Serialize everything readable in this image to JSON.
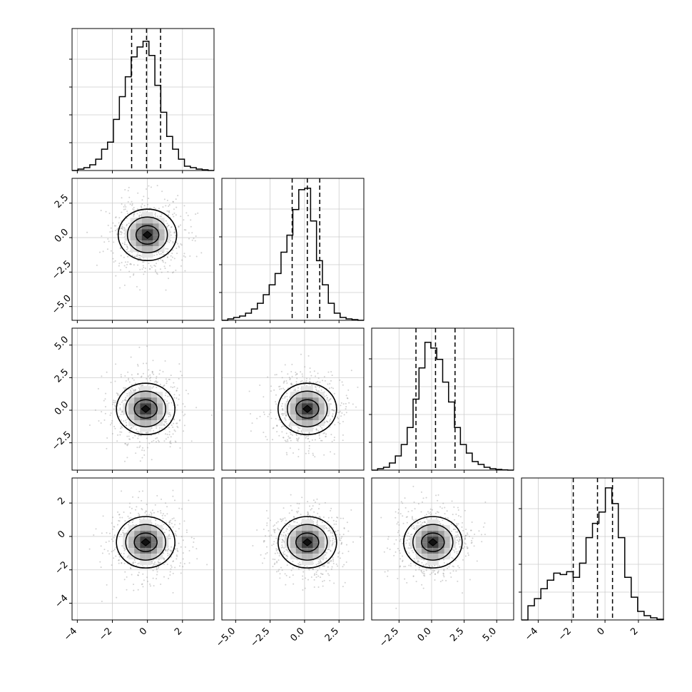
{
  "chart_data": {
    "type": "corner",
    "grid": true,
    "variables": [
      {
        "xlim": [
          -4.3,
          3.8
        ],
        "ticks": [
          -4,
          -2,
          0,
          2
        ],
        "tick_labels": [
          "−4",
          "−2",
          "0",
          "2"
        ],
        "quantiles": [
          -0.9,
          -0.05,
          0.75
        ]
      },
      {
        "xlim": [
          -6.0,
          4.3
        ],
        "ticks": [
          -5.0,
          -2.5,
          0.0,
          2.5
        ],
        "tick_labels": [
          "−5.0",
          "−2.5",
          "0.0",
          "2.5"
        ],
        "quantiles": [
          -0.9,
          0.2,
          1.1
        ]
      },
      {
        "xlim": [
          -4.6,
          6.3
        ],
        "ticks": [
          -2.5,
          0.0,
          2.5,
          5.0
        ],
        "tick_labels": [
          "−2.5",
          "0.0",
          "2.5",
          "5.0"
        ],
        "quantiles": [
          -1.2,
          0.3,
          1.8
        ]
      },
      {
        "xlim": [
          -5.0,
          3.5
        ],
        "ticks": [
          -4,
          -2,
          0,
          2
        ],
        "tick_labels": [
          "−4",
          "−2",
          "0",
          "2"
        ],
        "quantiles": [
          -1.9,
          -0.45,
          0.45
        ]
      }
    ],
    "row_ticks": [
      null,
      {
        "ticks": [
          2.5,
          0.0,
          -2.5,
          -5.0
        ],
        "tick_labels": [
          "2.5",
          "0.0",
          "−2.5",
          "−5.0"
        ]
      },
      {
        "ticks": [
          5.0,
          2.5,
          0.0,
          -2.5
        ],
        "tick_labels": [
          "5.0",
          "2.5",
          "0.0",
          "−2.5"
        ]
      },
      {
        "ticks": [
          2,
          0,
          -2,
          -4
        ],
        "tick_labels": [
          "2",
          "0",
          "−2",
          "−4"
        ]
      }
    ],
    "histograms": [
      {
        "bins": [
          -4.3,
          3.8
        ],
        "counts": [
          0,
          0.01,
          0.02,
          0.04,
          0.08,
          0.15,
          0.2,
          0.36,
          0.52,
          0.66,
          0.8,
          0.87,
          0.91,
          0.81,
          0.6,
          0.41,
          0.24,
          0.15,
          0.08,
          0.03,
          0.02,
          0.01,
          0.005,
          0
        ]
      },
      {
        "bins": [
          -6.0,
          4.3
        ],
        "counts": [
          0,
          0.01,
          0.02,
          0.03,
          0.05,
          0.08,
          0.12,
          0.18,
          0.25,
          0.33,
          0.48,
          0.6,
          0.78,
          0.92,
          0.93,
          0.7,
          0.42,
          0.25,
          0.12,
          0.05,
          0.02,
          0.01,
          0.005,
          0
        ]
      },
      {
        "bins": [
          -4.6,
          6.3
        ],
        "counts": [
          0,
          0.01,
          0.02,
          0.05,
          0.1,
          0.18,
          0.3,
          0.5,
          0.72,
          0.9,
          0.86,
          0.78,
          0.62,
          0.48,
          0.3,
          0.18,
          0.12,
          0.06,
          0.04,
          0.02,
          0.01,
          0.005,
          0.002,
          0
        ]
      },
      {
        "bins": [
          -5.0,
          3.5
        ],
        "counts": [
          0,
          0.1,
          0.15,
          0.22,
          0.28,
          0.33,
          0.32,
          0.34,
          0.3,
          0.4,
          0.58,
          0.68,
          0.76,
          0.93,
          0.82,
          0.58,
          0.3,
          0.16,
          0.06,
          0.03,
          0.015,
          0.005
        ]
      }
    ],
    "scatter_centers": {
      "1_0": [
        0.0,
        0.2
      ],
      "2_0": [
        -0.1,
        0.1
      ],
      "2_1": [
        0.2,
        0.1
      ],
      "3_0": [
        -0.1,
        -0.35
      ],
      "3_1": [
        0.2,
        -0.35
      ],
      "3_2": [
        0.1,
        -0.35
      ]
    }
  }
}
